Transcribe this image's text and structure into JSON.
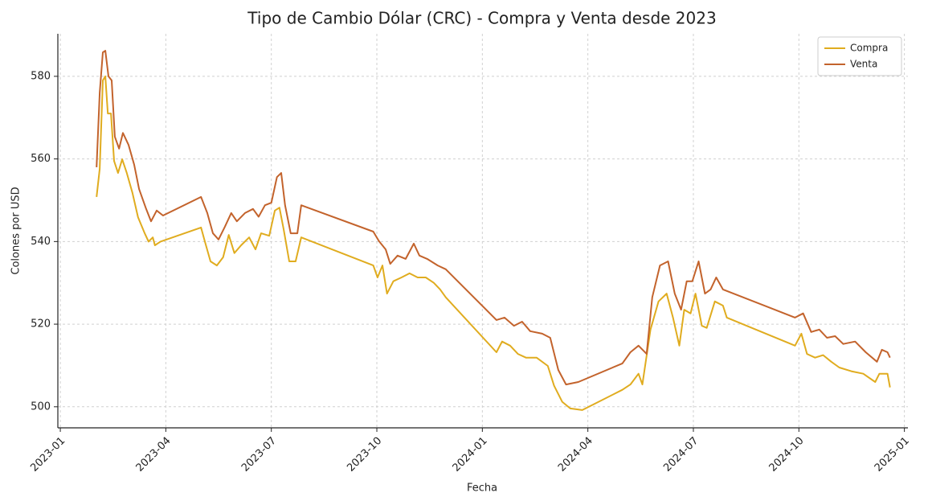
{
  "chart_data": {
    "type": "line",
    "title": "Tipo de Cambio Dólar (CRC) - Compra y Venta desde 2023",
    "x_label": "Fecha",
    "y_label": "Colones por USD",
    "xlim": [
      -0.07,
      24.1
    ],
    "ylim": [
      494.9,
      590.3
    ],
    "xticks": [
      {
        "value": 0,
        "label": "2023-01"
      },
      {
        "value": 3,
        "label": "2023-04"
      },
      {
        "value": 6,
        "label": "2023-07"
      },
      {
        "value": 9,
        "label": "2023-10"
      },
      {
        "value": 12,
        "label": "2024-01"
      },
      {
        "value": 15,
        "label": "2024-04"
      },
      {
        "value": 18,
        "label": "2024-07"
      },
      {
        "value": 21,
        "label": "2024-10"
      },
      {
        "value": 24,
        "label": "2025-01"
      }
    ],
    "yticks": [
      500,
      520,
      540,
      560,
      580
    ],
    "grid": true,
    "legend": "upper right",
    "series": [
      {
        "name": "Compra",
        "color": "#e0ac1f",
        "x": [
          1.03,
          1.12,
          1.21,
          1.28,
          1.35,
          1.44,
          1.53,
          1.64,
          1.76,
          1.89,
          2.05,
          2.21,
          2.4,
          2.51,
          2.63,
          2.69,
          2.85,
          4.0,
          4.11,
          4.27,
          4.45,
          4.63,
          4.79,
          4.95,
          5.14,
          5.37,
          5.55,
          5.71,
          5.94,
          6.1,
          6.23,
          6.35,
          6.51,
          6.69,
          6.85,
          8.9,
          9.02,
          9.16,
          9.29,
          9.47,
          9.7,
          9.93,
          10.16,
          10.39,
          10.62,
          10.8,
          10.96,
          12.4,
          12.56,
          12.79,
          13.01,
          13.24,
          13.54,
          13.86,
          14.04,
          14.27,
          14.5,
          14.84,
          15.98,
          16.21,
          16.44,
          16.55,
          16.78,
          17.01,
          17.24,
          17.42,
          17.6,
          17.74,
          17.92,
          18.06,
          18.24,
          18.38,
          18.61,
          18.84,
          18.95,
          20.89,
          21.07,
          21.23,
          21.46,
          21.69,
          21.92,
          22.15,
          22.49,
          22.83,
          23.17,
          23.29,
          23.52,
          23.59
        ],
        "values": [
          550.8,
          557.6,
          579,
          580,
          571,
          571,
          559.5,
          556.6,
          559.9,
          556.6,
          551.8,
          545.9,
          542,
          540,
          541,
          539.1,
          540,
          543.4,
          540,
          535.2,
          534.2,
          536.2,
          541.6,
          537.2,
          539.1,
          541,
          538.1,
          542,
          541.4,
          547.5,
          548.2,
          543,
          535.2,
          535.2,
          541,
          534.2,
          531.3,
          534.2,
          527.4,
          530.4,
          531.3,
          532.3,
          531.3,
          531.3,
          530,
          528.4,
          526.5,
          513.2,
          515.8,
          514.8,
          512.8,
          511.9,
          511.9,
          509.9,
          505.1,
          501.2,
          499.6,
          499.2,
          504.1,
          505.4,
          508,
          505.4,
          518.7,
          525.5,
          527.4,
          521.6,
          514.8,
          523.5,
          522.6,
          527.4,
          519.6,
          519.1,
          525.5,
          524.5,
          521.6,
          514.8,
          517.7,
          512.8,
          511.9,
          512.5,
          510.9,
          509.5,
          508.6,
          508,
          506,
          508,
          508,
          504.7
        ]
      },
      {
        "name": "Venta",
        "color": "#c3632c",
        "x": [
          1.03,
          1.12,
          1.21,
          1.28,
          1.37,
          1.46,
          1.55,
          1.67,
          1.78,
          1.94,
          2.1,
          2.24,
          2.44,
          2.58,
          2.74,
          2.92,
          4.0,
          4.18,
          4.34,
          4.5,
          4.68,
          4.86,
          5.02,
          5.25,
          5.48,
          5.64,
          5.82,
          6.0,
          6.16,
          6.28,
          6.39,
          6.55,
          6.74,
          6.85,
          8.9,
          9.06,
          9.25,
          9.38,
          9.59,
          9.82,
          10.05,
          10.21,
          10.43,
          10.73,
          10.96,
          12.4,
          12.63,
          12.9,
          13.13,
          13.36,
          13.7,
          13.93,
          14.16,
          14.38,
          14.73,
          15.98,
          16.21,
          16.44,
          16.67,
          16.83,
          17.05,
          17.28,
          17.47,
          17.65,
          17.81,
          17.97,
          18.15,
          18.33,
          18.49,
          18.65,
          18.84,
          20.89,
          21.12,
          21.35,
          21.58,
          21.8,
          22.03,
          22.26,
          22.6,
          22.9,
          23.22,
          23.36,
          23.52,
          23.59
        ],
        "values": [
          558,
          576,
          585.8,
          586.2,
          580,
          579,
          565.4,
          562.5,
          566.3,
          563.4,
          558.6,
          552.7,
          547.9,
          544.9,
          547.5,
          546.3,
          550.8,
          546.9,
          542,
          540.5,
          543.6,
          546.9,
          544.9,
          546.9,
          547.9,
          546,
          548.8,
          549.4,
          555.6,
          556.6,
          548.8,
          542,
          542,
          548.8,
          542.4,
          540.1,
          538.1,
          534.6,
          536.6,
          535.8,
          539.5,
          536.6,
          535.8,
          534.2,
          533.3,
          521,
          521.6,
          519.6,
          520.6,
          518.3,
          517.7,
          516.7,
          508.9,
          505.4,
          506,
          510.5,
          513.2,
          514.8,
          512.8,
          526.5,
          534.2,
          535.2,
          527.4,
          523.5,
          530.4,
          530.4,
          535.2,
          527.4,
          528.4,
          531.3,
          528.4,
          521.6,
          522.6,
          518.1,
          518.7,
          516.7,
          517.1,
          515.2,
          515.8,
          513.2,
          510.9,
          513.8,
          513.2,
          511.9
        ]
      }
    ]
  }
}
